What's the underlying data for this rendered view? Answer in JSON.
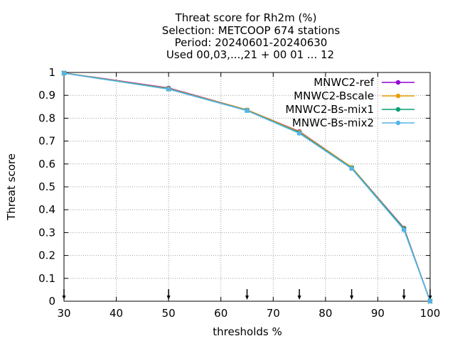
{
  "chart_data": {
    "type": "line",
    "title_lines": [
      "Threat score  for Rh2m (%)",
      "Selection: METCOOP    674 stations",
      "Period: 20240601-20240630",
      "Used 00,03,...,21 + 00 01 ... 12"
    ],
    "xlabel": "thresholds %",
    "ylabel": "Threat score",
    "xlim": [
      30,
      100
    ],
    "ylim": [
      0,
      1
    ],
    "x_ticks": [
      30,
      40,
      50,
      60,
      70,
      80,
      90,
      100
    ],
    "y_ticks": [
      0,
      0.1,
      0.2,
      0.3,
      0.4,
      0.5,
      0.6,
      0.7,
      0.8,
      0.9,
      1
    ],
    "grid": true,
    "legend_position": "top-right",
    "threshold_markers": [
      30,
      50,
      65,
      75,
      85,
      95,
      100
    ],
    "x": [
      30,
      50,
      65,
      75,
      85,
      95,
      100
    ],
    "series": [
      {
        "name": "MNWC2-ref",
        "color": "#9400d3",
        "marker": "circle",
        "values": [
          0.998,
          0.932,
          0.836,
          0.742,
          0.585,
          0.32,
          0.0
        ]
      },
      {
        "name": "MNWC2-Bscale",
        "color": "#e69f00",
        "marker": "circle",
        "values": [
          0.998,
          0.93,
          0.836,
          0.74,
          0.585,
          0.318,
          0.0
        ]
      },
      {
        "name": "MNWC2-Bs-mix1",
        "color": "#009e73",
        "marker": "cross",
        "values": [
          0.997,
          0.928,
          0.834,
          0.736,
          0.582,
          0.316,
          0.0
        ]
      },
      {
        "name": "MNWC-Bs-mix2",
        "color": "#56b4e9",
        "marker": "circle",
        "values": [
          0.997,
          0.927,
          0.833,
          0.734,
          0.58,
          0.312,
          0.0
        ]
      }
    ]
  }
}
